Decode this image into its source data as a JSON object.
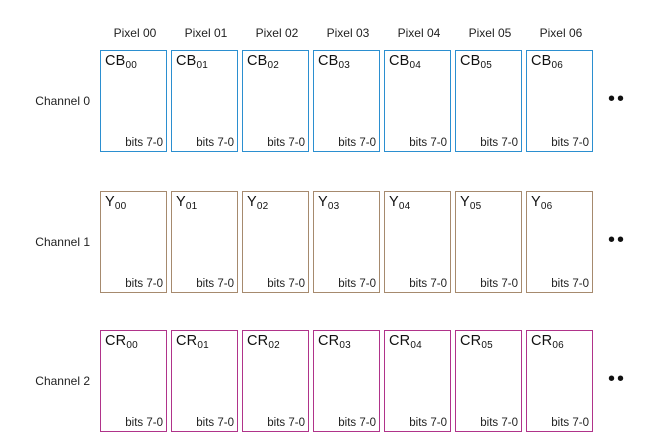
{
  "pixels": [
    "Pixel 00",
    "Pixel 01",
    "Pixel 02",
    "Pixel 03",
    "Pixel 04",
    "Pixel 05",
    "Pixel 06"
  ],
  "channels": [
    {
      "label": "Channel 0",
      "color": "#2b8fd0",
      "cells": [
        {
          "base": "CB",
          "sub": "00",
          "bits": "bits 7-0"
        },
        {
          "base": "CB",
          "sub": "01",
          "bits": "bits 7-0"
        },
        {
          "base": "CB",
          "sub": "02",
          "bits": "bits 7-0"
        },
        {
          "base": "CB",
          "sub": "03",
          "bits": "bits 7-0"
        },
        {
          "base": "CB",
          "sub": "04",
          "bits": "bits 7-0"
        },
        {
          "base": "CB",
          "sub": "05",
          "bits": "bits 7-0"
        },
        {
          "base": "CB",
          "sub": "06",
          "bits": "bits 7-0"
        }
      ],
      "ellipsis": "••"
    },
    {
      "label": "Channel 1",
      "color": "#a68a6e",
      "cells": [
        {
          "base": "Y",
          "sub": "00",
          "bits": "bits 7-0"
        },
        {
          "base": "Y",
          "sub": "01",
          "bits": "bits 7-0"
        },
        {
          "base": "Y",
          "sub": "02",
          "bits": "bits 7-0"
        },
        {
          "base": "Y",
          "sub": "03",
          "bits": "bits 7-0"
        },
        {
          "base": "Y",
          "sub": "04",
          "bits": "bits 7-0"
        },
        {
          "base": "Y",
          "sub": "05",
          "bits": "bits 7-0"
        },
        {
          "base": "Y",
          "sub": "06",
          "bits": "bits 7-0"
        }
      ],
      "ellipsis": "••"
    },
    {
      "label": "Channel 2",
      "color": "#b0338a",
      "cells": [
        {
          "base": "CR",
          "sub": "00",
          "bits": "bits 7-0"
        },
        {
          "base": "CR",
          "sub": "01",
          "bits": "bits 7-0"
        },
        {
          "base": "CR",
          "sub": "02",
          "bits": "bits 7-0"
        },
        {
          "base": "CR",
          "sub": "03",
          "bits": "bits 7-0"
        },
        {
          "base": "CR",
          "sub": "04",
          "bits": "bits 7-0"
        },
        {
          "base": "CR",
          "sub": "05",
          "bits": "bits 7-0"
        },
        {
          "base": "CR",
          "sub": "06",
          "bits": "bits 7-0"
        }
      ],
      "ellipsis": "••"
    }
  ]
}
